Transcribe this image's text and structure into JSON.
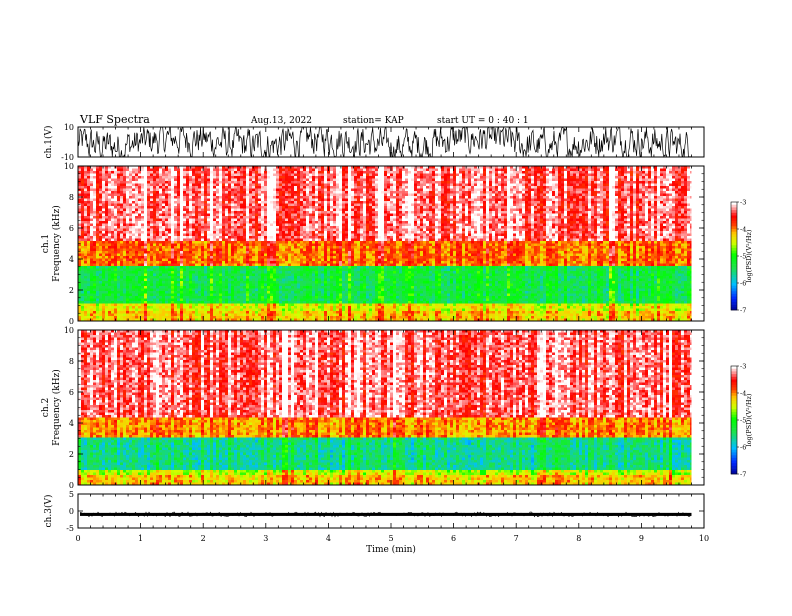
{
  "header": {
    "title": "VLF Spectra",
    "date": "Aug.13, 2022",
    "station": "station= KAP",
    "start": "start  UT =   0 : 40 : 1"
  },
  "chart_data": [
    {
      "type": "line",
      "name": "ch1-waveform",
      "ylabel": "ch.1(V)",
      "ylim": [
        -10,
        10
      ],
      "yticks": [
        "10",
        "-10"
      ],
      "xlim": [
        0,
        10
      ]
    },
    {
      "type": "heatmap",
      "name": "ch1-spectrogram",
      "ylabel": "ch.1\nFrequency (kHz)",
      "ylim": [
        0,
        10
      ],
      "yticks": [
        "0",
        "2",
        "4",
        "6",
        "8",
        "10"
      ],
      "xlim": [
        0,
        10
      ],
      "data_end_min": 9.8,
      "bands_khz": [
        {
          "from": 0,
          "to": 0.6,
          "level": -4.2
        },
        {
          "from": 0.6,
          "to": 1.2,
          "level": -4.4
        },
        {
          "from": 1.2,
          "to": 3.6,
          "level": -5.3
        },
        {
          "from": 3.6,
          "to": 5.2,
          "level": -3.9
        },
        {
          "from": 5.2,
          "to": 10,
          "level": -3.3
        }
      ],
      "colorbar": {
        "label": "log(PSD)(V²/Hz)",
        "ticks": [
          "-3",
          "-4",
          "-5",
          "-6",
          "-7"
        ],
        "range": [
          -7,
          -3
        ]
      }
    },
    {
      "type": "heatmap",
      "name": "ch2-spectrogram",
      "ylabel": "ch.2\nFrequency (kHz)",
      "ylim": [
        0,
        10
      ],
      "yticks": [
        "0",
        "2",
        "4",
        "6",
        "8",
        "10"
      ],
      "xlim": [
        0,
        10
      ],
      "data_end_min": 9.8,
      "bands_khz": [
        {
          "from": 0,
          "to": 0.6,
          "level": -4.2
        },
        {
          "from": 0.6,
          "to": 1.0,
          "level": -4.5
        },
        {
          "from": 1.0,
          "to": 3.1,
          "level": -5.6
        },
        {
          "from": 3.1,
          "to": 4.4,
          "level": -4.0
        },
        {
          "from": 4.4,
          "to": 10,
          "level": -3.3
        }
      ],
      "colorbar": {
        "label": "log(PSD)(V²/Hz)",
        "ticks": [
          "-3",
          "-4",
          "-5",
          "-6",
          "-7"
        ],
        "range": [
          -7,
          -3
        ]
      }
    },
    {
      "type": "line",
      "name": "ch3-waveform",
      "ylabel": "ch.3(V)",
      "ylim": [
        -5,
        5
      ],
      "yticks": [
        "5",
        "0",
        "-5"
      ],
      "xlim": [
        0,
        10
      ],
      "level": -1
    }
  ],
  "xaxis": {
    "label": "Time (min)",
    "ticks": [
      "0",
      "1",
      "2",
      "3",
      "4",
      "5",
      "6",
      "7",
      "8",
      "9",
      "10"
    ]
  }
}
